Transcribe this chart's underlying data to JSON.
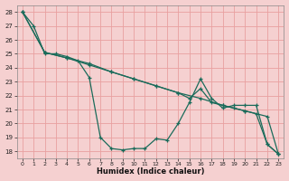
{
  "xlabel": "Humidex (Indice chaleur)",
  "bg_color": "#f5d0d0",
  "grid_color": "#e8a0a0",
  "line_color": "#1a6b5a",
  "xlim": [
    -0.5,
    23.5
  ],
  "ylim": [
    17.5,
    28.5
  ],
  "xticks": [
    0,
    1,
    2,
    3,
    4,
    5,
    6,
    7,
    8,
    9,
    10,
    11,
    12,
    13,
    14,
    15,
    16,
    17,
    18,
    19,
    20,
    21,
    22,
    23
  ],
  "yticks": [
    18,
    19,
    20,
    21,
    22,
    23,
    24,
    25,
    26,
    27,
    28
  ],
  "series": [
    {
      "x": [
        0,
        1,
        2,
        3,
        4,
        5,
        6,
        7,
        8,
        9,
        10,
        11,
        12,
        13,
        14,
        15,
        16,
        17,
        18,
        19,
        20,
        21,
        22,
        23
      ],
      "y": [
        28,
        27,
        25,
        25,
        24.8,
        24.5,
        23.3,
        19,
        18.2,
        18.1,
        18.2,
        18.2,
        18.9,
        18.8,
        20,
        21.5,
        23.2,
        21.8,
        21.1,
        21.3,
        21.3,
        21.3,
        18.5,
        17.8
      ]
    },
    {
      "x": [
        0,
        2,
        4,
        6,
        8,
        10,
        12,
        14,
        16,
        18,
        20,
        22,
        23
      ],
      "y": [
        28,
        25.1,
        24.7,
        24.2,
        23.7,
        23.2,
        22.7,
        22.2,
        21.8,
        21.3,
        20.9,
        20.5,
        17.8
      ]
    },
    {
      "x": [
        0,
        2,
        4,
        6,
        8,
        10,
        12,
        14,
        15,
        16,
        17,
        18,
        19,
        20,
        21,
        22,
        23
      ],
      "y": [
        28,
        25.1,
        24.7,
        24.3,
        23.7,
        23.2,
        22.7,
        22.2,
        21.8,
        22.5,
        21.5,
        21.3,
        21.1,
        20.9,
        20.7,
        18.5,
        17.8
      ]
    }
  ]
}
